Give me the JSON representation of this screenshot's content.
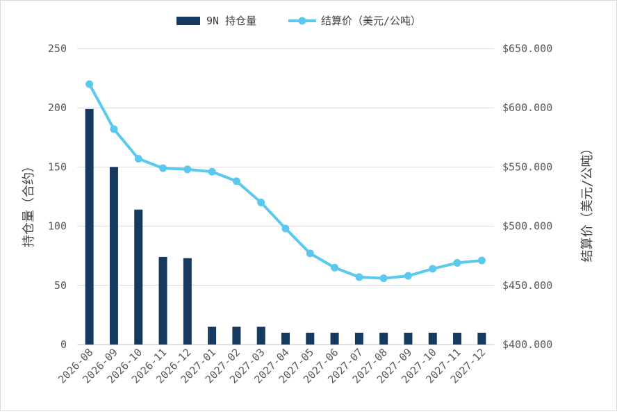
{
  "chart_data": {
    "type": "bar+line",
    "categories": [
      "2026-08",
      "2026-09",
      "2026-10",
      "2026-11",
      "2026-12",
      "2027-01",
      "2027-02",
      "2027-03",
      "2027-04",
      "2027-05",
      "2027-06",
      "2027-07",
      "2027-08",
      "2027-09",
      "2027-10",
      "2027-11",
      "2027-12"
    ],
    "series": [
      {
        "name": "9N 持仓量",
        "type": "bar",
        "axis": "left",
        "color": "#163a5f",
        "values": [
          199,
          150,
          114,
          74,
          73,
          15,
          15,
          15,
          10,
          10,
          10,
          10,
          10,
          10,
          10,
          10,
          10
        ]
      },
      {
        "name": "结算价（美元/公吨）",
        "type": "line",
        "axis": "right",
        "color": "#5bc8ee",
        "values": [
          620,
          582,
          557,
          549,
          548,
          546,
          538,
          520,
          498,
          477,
          465,
          457,
          456,
          458,
          464,
          469,
          471
        ]
      }
    ],
    "ylabel_left": "持仓量（合约）",
    "ylabel_right": "结算价（美元/公吨）",
    "ylim_left": [
      0,
      250
    ],
    "yticks_left": [
      0,
      50,
      100,
      150,
      200,
      250
    ],
    "ylim_right": [
      400,
      650
    ],
    "yticks_right": [
      "$400.000",
      "$450.000",
      "$500.000",
      "$550.000",
      "$600.000",
      "$650.000"
    ],
    "grid": true,
    "legend_position": "top-center"
  }
}
